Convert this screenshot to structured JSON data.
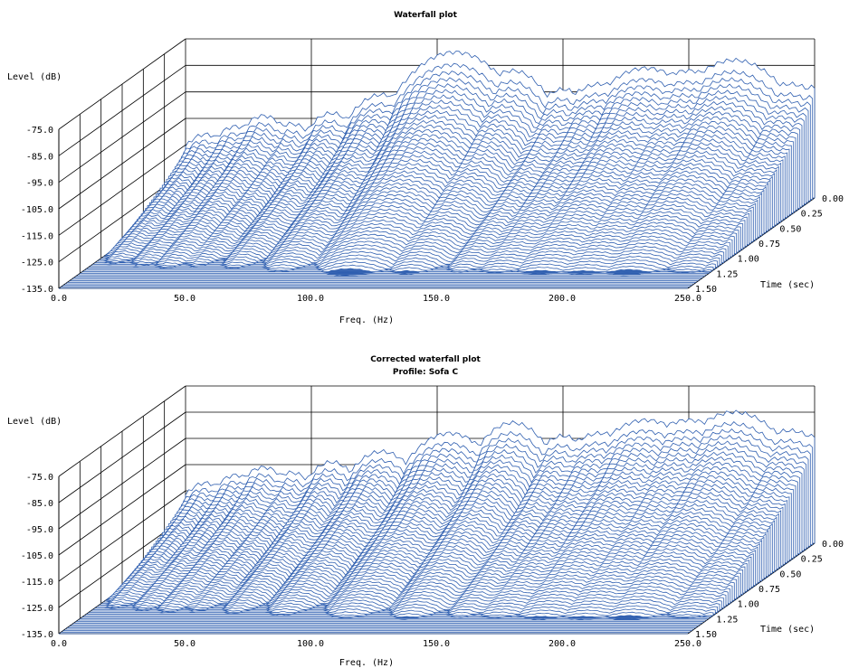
{
  "chart_data": [
    {
      "type": "waterfall",
      "title": "Waterfall plot",
      "subtitle": "",
      "xlabel": "Freq. (Hz)",
      "ylabel": "Level (dB)",
      "zlabel": "Time (sec)",
      "xlim": [
        0,
        250
      ],
      "ylim": [
        -135,
        -75
      ],
      "zlim": [
        0,
        1.5
      ],
      "x_ticks": [
        "0.0",
        "50.0",
        "100.0",
        "150.0",
        "200.0",
        "250.0"
      ],
      "y_ticks": [
        "-75.0",
        "-85.0",
        "-95.0",
        "-105.0",
        "-115.0",
        "-125.0",
        "-135.0"
      ],
      "z_ticks": [
        "0.00",
        "0.25",
        "0.50",
        "0.75",
        "1.00",
        "1.25",
        "1.50"
      ],
      "line_color": "#2f5fb0",
      "fill_color": "#2f5fb0",
      "peaks": [
        {
          "freq": 8,
          "level": -111,
          "width": 5
        },
        {
          "freq": 20,
          "level": -108,
          "width": 5
        },
        {
          "freq": 31,
          "level": -104,
          "width": 5
        },
        {
          "freq": 42,
          "level": -107,
          "width": 5
        },
        {
          "freq": 58,
          "level": -103,
          "width": 5
        },
        {
          "freq": 78,
          "level": -96,
          "width": 6
        },
        {
          "freq": 107,
          "level": -80,
          "width": 8
        },
        {
          "freq": 130,
          "level": -87,
          "width": 6
        },
        {
          "freq": 150,
          "level": -94,
          "width": 5
        },
        {
          "freq": 165,
          "level": -92,
          "width": 7
        },
        {
          "freq": 183,
          "level": -86,
          "width": 8
        },
        {
          "freq": 200,
          "level": -87,
          "width": 8
        },
        {
          "freq": 218,
          "level": -83,
          "width": 8
        },
        {
          "freq": 240,
          "level": -92,
          "width": 7
        },
        {
          "freq": 250,
          "level": -93,
          "width": 4
        }
      ]
    },
    {
      "type": "waterfall",
      "title": "Corrected waterfall plot",
      "subtitle": "Profile: Sofa C",
      "xlabel": "Freq. (Hz)",
      "ylabel": "Level (dB)",
      "zlabel": "Time (sec)",
      "xlim": [
        0,
        250
      ],
      "ylim": [
        -135,
        -75
      ],
      "zlim": [
        0,
        1.5
      ],
      "x_ticks": [
        "0.0",
        "50.0",
        "100.0",
        "150.0",
        "200.0",
        "250.0"
      ],
      "y_ticks": [
        "-75.0",
        "-85.0",
        "-95.0",
        "-105.0",
        "-115.0",
        "-125.0",
        "-135.0"
      ],
      "z_ticks": [
        "0.00",
        "0.25",
        "0.50",
        "0.75",
        "1.00",
        "1.25",
        "1.50"
      ],
      "line_color": "#2f5fb0",
      "fill_color": "#2f5fb0",
      "peaks": [
        {
          "freq": 8,
          "level": -112,
          "width": 5
        },
        {
          "freq": 20,
          "level": -109,
          "width": 5
        },
        {
          "freq": 31,
          "level": -106,
          "width": 5
        },
        {
          "freq": 42,
          "level": -108,
          "width": 5
        },
        {
          "freq": 58,
          "level": -104,
          "width": 5
        },
        {
          "freq": 78,
          "level": -100,
          "width": 6
        },
        {
          "freq": 105,
          "level": -93,
          "width": 7
        },
        {
          "freq": 130,
          "level": -89,
          "width": 6
        },
        {
          "freq": 150,
          "level": -94,
          "width": 5
        },
        {
          "freq": 165,
          "level": -93,
          "width": 7
        },
        {
          "freq": 183,
          "level": -88,
          "width": 8
        },
        {
          "freq": 200,
          "level": -88,
          "width": 8
        },
        {
          "freq": 218,
          "level": -85,
          "width": 8
        },
        {
          "freq": 240,
          "level": -92,
          "width": 7
        },
        {
          "freq": 250,
          "level": -94,
          "width": 4
        }
      ]
    }
  ]
}
